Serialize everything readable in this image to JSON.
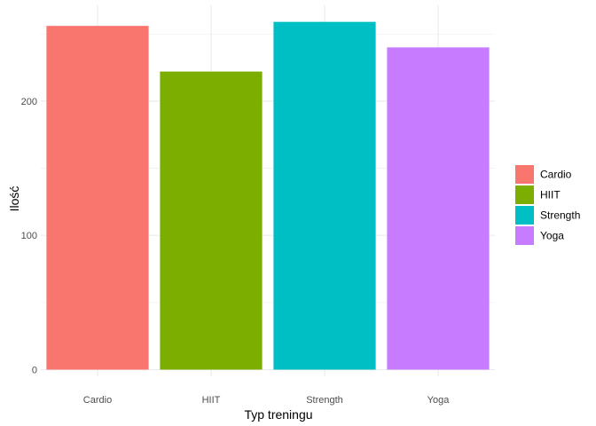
{
  "chart_data": {
    "type": "bar",
    "categories": [
      "Cardio",
      "HIIT",
      "Strength",
      "Yoga"
    ],
    "values": [
      256,
      222,
      259,
      240
    ],
    "colors": [
      "#F8766D",
      "#7CAE00",
      "#00BFC4",
      "#C77CFF"
    ],
    "xlabel": "Typ treningu",
    "ylabel": "Ilość",
    "ylim": [
      0,
      260
    ],
    "yticks": [
      0,
      100,
      200
    ],
    "grid": true,
    "legend": {
      "position": "right",
      "entries": [
        "Cardio",
        "HIIT",
        "Strength",
        "Yoga"
      ]
    }
  }
}
